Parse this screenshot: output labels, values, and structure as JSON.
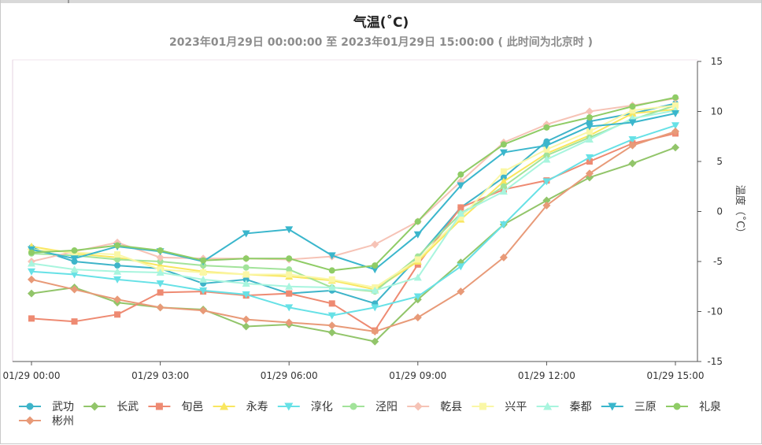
{
  "chart_data": {
    "type": "line",
    "title": "气温(˚C)",
    "subtitle": "2023年01月29日 00:00:00 至 2023年01月29日 15:00:00 ( 此时间为北京时 )",
    "ylabel": "温度（˚C）",
    "xlabel": "",
    "x": [
      0,
      1,
      2,
      3,
      4,
      5,
      6,
      7,
      8,
      9,
      10,
      11,
      12,
      13,
      14,
      15
    ],
    "x_tick_labels": [
      "01/29 00:00",
      "01/29 03:00",
      "01/29 06:00",
      "01/29 09:00",
      "01/29 12:00",
      "01/29 15:00"
    ],
    "x_tick_positions": [
      0,
      3,
      6,
      9,
      12,
      15
    ],
    "ylim": [
      -15,
      15
    ],
    "y_ticks": [
      -15,
      -10,
      -5,
      0,
      5,
      10,
      15
    ],
    "y_axis_side": "right",
    "grid": false,
    "legend_position": "bottom",
    "series": [
      {
        "name": "武功",
        "color": "#3eb4c9",
        "marker": "circle",
        "values": [
          -3.6,
          -5.0,
          -5.4,
          -5.7,
          -7.2,
          -6.8,
          -8.2,
          -7.9,
          -9.2,
          -4.6,
          0.4,
          3.4,
          7.0,
          9.0,
          9.8,
          10.8
        ]
      },
      {
        "name": "长武",
        "color": "#92c56a",
        "marker": "diamond",
        "values": [
          -8.2,
          -7.6,
          -9.1,
          -9.6,
          -9.8,
          -11.5,
          -11.3,
          -12.1,
          -13.0,
          -8.8,
          -5.1,
          -1.3,
          1.1,
          3.4,
          4.8,
          6.4
        ]
      },
      {
        "name": "旬邑",
        "color": "#ee8a72",
        "marker": "square",
        "values": [
          -10.7,
          -11.0,
          -10.3,
          -8.1,
          -8.0,
          -8.4,
          -8.2,
          -9.2,
          -11.9,
          -5.3,
          0.4,
          2.2,
          3.1,
          5.0,
          6.8,
          7.8
        ]
      },
      {
        "name": "永寿",
        "color": "#f9e65f",
        "marker": "triangle-up",
        "values": [
          -3.5,
          -4.2,
          -4.6,
          -5.4,
          -6.0,
          -6.3,
          -6.5,
          -6.9,
          -7.8,
          -5.0,
          -0.8,
          3.0,
          5.8,
          7.6,
          9.8,
          10.2
        ]
      },
      {
        "name": "淳化",
        "color": "#67e1e6",
        "marker": "triangle-down",
        "values": [
          -6.0,
          -6.3,
          -6.8,
          -7.2,
          -7.9,
          -8.3,
          -9.6,
          -10.4,
          -9.6,
          -8.5,
          -5.5,
          -1.3,
          3.0,
          5.4,
          7.2,
          8.6
        ]
      },
      {
        "name": "泾阳",
        "color": "#a2e39a",
        "marker": "circle",
        "values": [
          -4.2,
          -4.4,
          -4.8,
          -5.0,
          -5.4,
          -5.6,
          -5.8,
          -7.6,
          -8.0,
          -4.5,
          -0.2,
          2.5,
          5.6,
          7.4,
          9.2,
          10.6
        ]
      },
      {
        "name": "乾县",
        "color": "#f6c3b6",
        "marker": "diamond",
        "values": [
          -5.0,
          -4.0,
          -3.1,
          -4.6,
          -4.7,
          -4.7,
          -4.8,
          -4.5,
          -3.3,
          -1.0,
          3.0,
          6.9,
          8.7,
          10.0,
          10.6,
          11.3
        ]
      },
      {
        "name": "兴平",
        "color": "#faf7a6",
        "marker": "square",
        "values": [
          -3.8,
          -4.1,
          -4.3,
          -5.8,
          -6.1,
          -6.3,
          -6.3,
          -6.8,
          -7.6,
          -4.8,
          -0.6,
          4.0,
          6.2,
          8.0,
          10.1,
          10.6
        ]
      },
      {
        "name": "秦都",
        "color": "#a8f5de",
        "marker": "triangle-up",
        "values": [
          -5.2,
          -5.8,
          -6.0,
          -6.1,
          -6.8,
          -7.2,
          -7.5,
          -7.6,
          -7.9,
          -6.6,
          -0.2,
          2.0,
          5.2,
          7.2,
          9.3,
          10.1
        ]
      },
      {
        "name": "三原",
        "color": "#3ab6cc",
        "marker": "triangle-down",
        "values": [
          -3.8,
          -4.7,
          -3.5,
          -4.0,
          -5.0,
          -2.2,
          -1.8,
          -4.4,
          -5.8,
          -2.3,
          2.6,
          5.9,
          6.6,
          8.5,
          8.9,
          9.8
        ]
      },
      {
        "name": "礼泉",
        "color": "#8fcc66",
        "marker": "circle",
        "values": [
          -4.1,
          -3.9,
          -3.4,
          -3.9,
          -4.9,
          -4.7,
          -4.7,
          -5.9,
          -5.4,
          -1.0,
          3.7,
          6.7,
          8.4,
          9.4,
          10.5,
          11.4
        ]
      },
      {
        "name": "彬州",
        "color": "#e89a78",
        "marker": "diamond",
        "values": [
          -6.8,
          -7.8,
          -8.8,
          -9.6,
          -9.9,
          -10.8,
          -11.1,
          -11.4,
          -12.0,
          -10.6,
          -8.0,
          -4.6,
          0.6,
          3.8,
          6.6,
          8.0
        ]
      }
    ]
  }
}
